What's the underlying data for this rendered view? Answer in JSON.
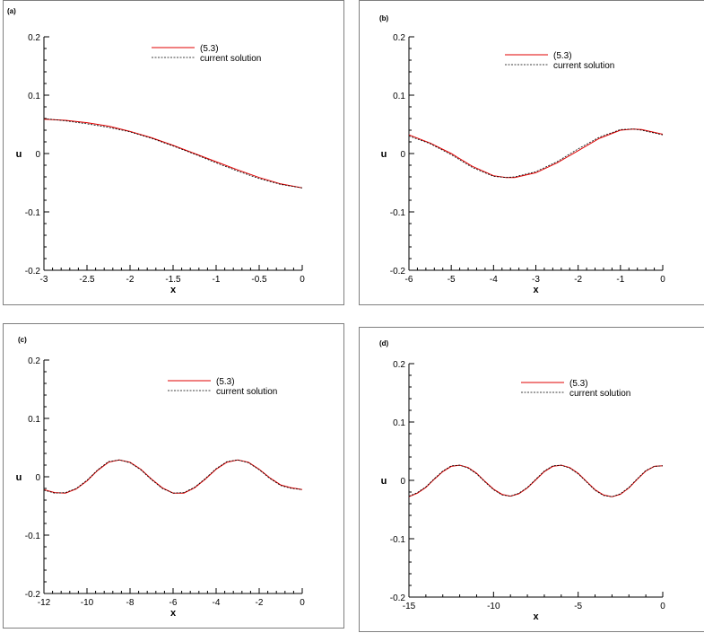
{
  "chart_data": [
    {
      "panel_label": "(a)",
      "type": "line",
      "xlabel": "x",
      "ylabel": "u",
      "xlim": [
        -3,
        0
      ],
      "ylim": [
        -0.2,
        0.2
      ],
      "xticks": [
        -3,
        -2.5,
        -2,
        -1.5,
        -1,
        -0.5,
        0
      ],
      "yticks": [
        -0.2,
        -0.1,
        0,
        0.1,
        0.2
      ],
      "xtick_labels": [
        "-3",
        "-2.5",
        "-2",
        "-1.5",
        "-1",
        "-0.5",
        "0"
      ],
      "ytick_labels": [
        "-0.2",
        "-0.1",
        "0",
        "0.1",
        "0.2"
      ],
      "legend": [
        "(5.3)",
        "current solution"
      ],
      "series": [
        {
          "name": "(5.3)",
          "color": "#e00000",
          "dash": "solid",
          "x": [
            -3,
            -2.75,
            -2.5,
            -2.25,
            -2,
            -1.75,
            -1.5,
            -1.25,
            -1,
            -0.75,
            -0.5,
            -0.25,
            0
          ],
          "y": [
            0.059,
            0.057,
            0.053,
            0.047,
            0.038,
            0.027,
            0.014,
            0.0,
            -0.014,
            -0.028,
            -0.041,
            -0.052,
            -0.059
          ]
        },
        {
          "name": "current solution",
          "color": "#000000",
          "dash": "dashed",
          "x": [
            -3,
            -2.75,
            -2.5,
            -2.25,
            -2,
            -1.75,
            -1.5,
            -1.25,
            -1,
            -0.75,
            -0.5,
            -0.25,
            0
          ],
          "y": [
            0.06,
            0.056,
            0.051,
            0.045,
            0.037,
            0.026,
            0.013,
            -0.001,
            -0.016,
            -0.03,
            -0.043,
            -0.053,
            -0.059
          ]
        }
      ]
    },
    {
      "panel_label": "(b)",
      "type": "line",
      "xlabel": "x",
      "ylabel": "u",
      "xlim": [
        -6,
        0
      ],
      "ylim": [
        -0.2,
        0.2
      ],
      "xticks": [
        -6,
        -5,
        -4,
        -3,
        -2,
        -1,
        0
      ],
      "yticks": [
        -0.2,
        -0.1,
        0,
        0.1,
        0.2
      ],
      "xtick_labels": [
        "-6",
        "-5",
        "-4",
        "-3",
        "-2",
        "-1",
        "0"
      ],
      "ytick_labels": [
        "-0.2",
        "-0.1",
        "0",
        "0.1",
        "0.2"
      ],
      "legend": [
        "(5.3)",
        "current solution"
      ],
      "series": [
        {
          "name": "(5.3)",
          "color": "#e00000",
          "dash": "solid",
          "x": [
            -6,
            -5.5,
            -5,
            -4.5,
            -4,
            -3.7,
            -3.5,
            -3,
            -2.5,
            -2,
            -1.5,
            -1,
            -0.7,
            -0.5,
            0
          ],
          "y": [
            0.032,
            0.018,
            0.0,
            -0.022,
            -0.038,
            -0.041,
            -0.041,
            -0.033,
            -0.016,
            0.005,
            0.026,
            0.04,
            0.042,
            0.041,
            0.033
          ]
        },
        {
          "name": "current solution",
          "color": "#000000",
          "dash": "dashed",
          "x": [
            -6,
            -5.5,
            -5,
            -4.5,
            -4,
            -3.7,
            -3.5,
            -3,
            -2.5,
            -2,
            -1.5,
            -1,
            -0.7,
            -0.5,
            0
          ],
          "y": [
            0.03,
            0.017,
            -0.002,
            -0.024,
            -0.039,
            -0.041,
            -0.04,
            -0.031,
            -0.014,
            0.008,
            0.028,
            0.041,
            0.042,
            0.04,
            0.032
          ]
        }
      ]
    },
    {
      "panel_label": "(c)",
      "type": "line",
      "xlabel": "x",
      "ylabel": "u",
      "xlim": [
        -12,
        0
      ],
      "ylim": [
        -0.2,
        0.2
      ],
      "xticks": [
        -12,
        -10,
        -8,
        -6,
        -4,
        -2,
        0
      ],
      "yticks": [
        -0.2,
        -0.1,
        0,
        0.1,
        0.2
      ],
      "xtick_labels": [
        "-12",
        "-10",
        "-8",
        "-6",
        "-4",
        "-2",
        "0"
      ],
      "ytick_labels": [
        "-0.2",
        "-0.1",
        "0",
        "0.1",
        "0.2"
      ],
      "legend": [
        "(5.3)",
        "current solution"
      ],
      "series": [
        {
          "name": "(5.3)",
          "color": "#e00000",
          "dash": "solid",
          "x": [
            -12,
            -11.5,
            -11,
            -10.5,
            -10,
            -9.5,
            -9,
            -8.5,
            -8,
            -7.5,
            -7,
            -6.5,
            -6,
            -5.5,
            -5,
            -4.5,
            -4,
            -3.5,
            -3,
            -2.5,
            -2,
            -1.5,
            -1,
            -0.5,
            0
          ],
          "y": [
            -0.022,
            -0.027,
            -0.028,
            -0.021,
            -0.007,
            0.011,
            0.025,
            0.029,
            0.025,
            0.013,
            -0.004,
            -0.019,
            -0.028,
            -0.028,
            -0.019,
            -0.004,
            0.013,
            0.025,
            0.029,
            0.025,
            0.013,
            -0.002,
            -0.014,
            -0.019,
            -0.022
          ]
        },
        {
          "name": "current solution",
          "color": "#000000",
          "dash": "dashed",
          "x": [
            -12,
            -11.5,
            -11,
            -10.5,
            -10,
            -9.5,
            -9,
            -8.5,
            -8,
            -7.5,
            -7,
            -6.5,
            -6,
            -5.5,
            -5,
            -4.5,
            -4,
            -3.5,
            -3,
            -2.5,
            -2,
            -1.5,
            -1,
            -0.5,
            0
          ],
          "y": [
            -0.023,
            -0.028,
            -0.027,
            -0.02,
            -0.006,
            0.012,
            0.026,
            0.029,
            0.024,
            0.012,
            -0.005,
            -0.02,
            -0.028,
            -0.027,
            -0.018,
            -0.003,
            0.014,
            0.026,
            0.029,
            0.024,
            0.012,
            -0.003,
            -0.015,
            -0.02,
            -0.022
          ]
        }
      ]
    },
    {
      "panel_label": "(d)",
      "type": "line",
      "xlabel": "x",
      "ylabel": "u",
      "xlim": [
        -15,
        0
      ],
      "ylim": [
        -0.2,
        0.2
      ],
      "xticks": [
        -15,
        -10,
        -5,
        0
      ],
      "yticks": [
        -0.2,
        -0.1,
        0,
        0.1,
        0.2
      ],
      "xtick_labels": [
        "-15",
        "-10",
        "-5",
        "0"
      ],
      "ytick_labels": [
        "-0.2",
        "-0.1",
        "0",
        "0.1",
        "0.2"
      ],
      "legend": [
        "(5.3)",
        "current solution"
      ],
      "series": [
        {
          "name": "(5.3)",
          "color": "#e00000",
          "dash": "solid",
          "x": [
            -15,
            -14.5,
            -14,
            -13.5,
            -13,
            -12.5,
            -12,
            -11.5,
            -11,
            -10.5,
            -10,
            -9.5,
            -9,
            -8.5,
            -8,
            -7.5,
            -7,
            -6.5,
            -6,
            -5.5,
            -5,
            -4.5,
            -4,
            -3.5,
            -3,
            -2.5,
            -2,
            -1.5,
            -1,
            -0.5,
            0
          ],
          "y": [
            -0.028,
            -0.022,
            -0.012,
            0.002,
            0.015,
            0.024,
            0.026,
            0.022,
            0.012,
            -0.002,
            -0.015,
            -0.024,
            -0.027,
            -0.023,
            -0.013,
            0.001,
            0.015,
            0.024,
            0.026,
            0.022,
            0.012,
            -0.002,
            -0.016,
            -0.025,
            -0.028,
            -0.024,
            -0.013,
            0.002,
            0.016,
            0.024,
            0.025
          ]
        },
        {
          "name": "current solution",
          "color": "#000000",
          "dash": "dashed",
          "x": [
            -15,
            -14.5,
            -14,
            -13.5,
            -13,
            -12.5,
            -12,
            -11.5,
            -11,
            -10.5,
            -10,
            -9.5,
            -9,
            -8.5,
            -8,
            -7.5,
            -7,
            -6.5,
            -6,
            -5.5,
            -5,
            -4.5,
            -4,
            -3.5,
            -3,
            -2.5,
            -2,
            -1.5,
            -1,
            -0.5,
            0
          ],
          "y": [
            -0.027,
            -0.021,
            -0.011,
            0.003,
            0.016,
            0.025,
            0.026,
            0.021,
            0.011,
            -0.003,
            -0.016,
            -0.025,
            -0.027,
            -0.022,
            -0.012,
            0.002,
            0.016,
            0.025,
            0.026,
            0.021,
            0.011,
            -0.003,
            -0.017,
            -0.026,
            -0.028,
            -0.023,
            -0.012,
            0.003,
            0.017,
            0.024,
            0.025
          ]
        }
      ]
    }
  ]
}
